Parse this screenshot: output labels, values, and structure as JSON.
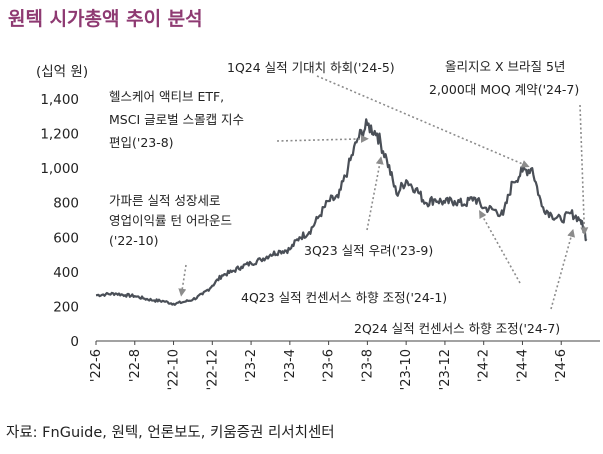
{
  "title": "원텍 시가총액 추이 분석",
  "source": "자료: FnGuide, 원텍, 언론보도, 키움증권 리서치센터",
  "colors": {
    "title": "#8e3a72",
    "line": "#4a4f57",
    "arrow": "#8c8c8c"
  },
  "chart_data": {
    "type": "line",
    "title": "원텍 시가총액 추이 분석",
    "ylabel": "(십억 원)",
    "xlabel": "",
    "ylim": [
      0,
      1400
    ],
    "yticks": [
      0,
      200,
      400,
      600,
      800,
      1000,
      1200,
      1400
    ],
    "ytick_labels": [
      "0",
      "200",
      "400",
      "600",
      "800",
      "1,000",
      "1,200",
      "1,400"
    ],
    "xticks": [
      "'22-6",
      "'22-8",
      "'22-10",
      "'22-12",
      "'23-2",
      "'23-4",
      "'23-6",
      "'23-8",
      "'23-10",
      "'23-12",
      "'24-2",
      "'24-4",
      "'24-6"
    ],
    "xlim": [
      0,
      26
    ],
    "series": [
      {
        "name": "시가총액",
        "x": [
          0,
          0.5,
          1,
          1.5,
          2,
          2.5,
          3,
          3.5,
          4,
          4.5,
          5,
          5.5,
          6,
          6.5,
          7,
          7.5,
          8,
          8.5,
          9,
          9.5,
          10,
          10.5,
          11,
          11.5,
          12,
          12.5,
          13,
          13.5,
          14,
          14.5,
          15,
          15.5,
          16,
          16.5,
          17,
          17.5,
          18,
          18.5,
          19,
          19.5,
          20,
          20.5,
          21,
          21.5,
          22,
          22.5,
          23,
          23.5,
          24,
          24.5,
          25,
          25.3
        ],
        "values": [
          265,
          270,
          275,
          265,
          260,
          245,
          235,
          230,
          215,
          225,
          240,
          270,
          320,
          380,
          400,
          430,
          450,
          470,
          500,
          520,
          530,
          600,
          630,
          720,
          810,
          830,
          1000,
          1170,
          1250,
          1200,
          1050,
          850,
          930,
          880,
          800,
          820,
          800,
          810,
          790,
          830,
          770,
          760,
          730,
          920,
          980,
          1000,
          780,
          730,
          700,
          740,
          700,
          590
        ]
      }
    ],
    "annotations": [
      {
        "lines": [
          "가파른 실적 성장세로",
          "영업이익률 턴 어라운드",
          "('22-10)"
        ],
        "x": 4.4,
        "y": 265
      },
      {
        "lines": [
          "헬스케어 액티브 ETF,",
          "MSCI 글로벌 스몰캡 지수",
          "편입('23-8)"
        ],
        "x": 14.0,
        "y": 1170
      },
      {
        "lines": [
          "1Q24 실적 기대치 하회('24-5)"
        ],
        "x": 22.3,
        "y": 1010
      },
      {
        "lines": [
          "올리지오 X 브라질 5년",
          "2,000대 MOQ 계약('24-7)"
        ],
        "x": 25.2,
        "y": 620
      },
      {
        "lines": [
          "3Q23 실적 우려('23-9)"
        ],
        "x": 14.7,
        "y": 1060
      },
      {
        "lines": [
          "4Q23 실적 컨센서스 하향 조정('24-1)"
        ],
        "x": 19.8,
        "y": 750
      },
      {
        "lines": [
          "2Q24 실적 컨센서스 하향 조정('24-7)"
        ],
        "x": 24.6,
        "y": 640
      }
    ]
  }
}
